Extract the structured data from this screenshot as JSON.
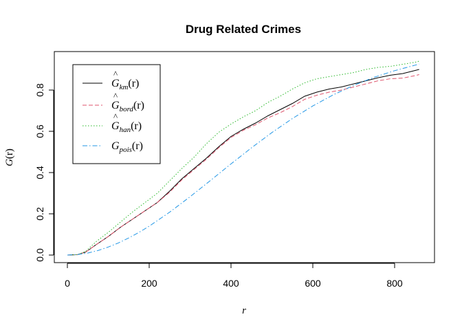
{
  "chart_data": {
    "type": "line",
    "title": "Drug Related Crimes",
    "xlabel": "r",
    "ylabel_base": "G",
    "ylabel_arg": "(r)",
    "xlim": [
      0,
      860
    ],
    "ylim": [
      0,
      0.93
    ],
    "x_ticks": [
      0,
      200,
      400,
      600,
      800
    ],
    "y_ticks": [
      0.0,
      0.2,
      0.4,
      0.6,
      0.8
    ],
    "x_tick_labels": [
      "0",
      "200",
      "400",
      "600",
      "800"
    ],
    "y_tick_labels": [
      "0.0",
      "0.2",
      "0.4",
      "0.6",
      "0.8"
    ],
    "legend_position": "top-left",
    "series": [
      {
        "base": "G",
        "hat": "^",
        "sub": "km",
        "arg": "(r)",
        "color": "#000000",
        "dash": "",
        "x": [
          0,
          25,
          45,
          70,
          100,
          130,
          160,
          190,
          220,
          250,
          280,
          310,
          340,
          370,
          400,
          430,
          460,
          490,
          520,
          550,
          580,
          610,
          640,
          670,
          700,
          730,
          760,
          790,
          820,
          850,
          860
        ],
        "y": [
          0,
          0.002,
          0.015,
          0.05,
          0.09,
          0.135,
          0.175,
          0.215,
          0.255,
          0.31,
          0.37,
          0.42,
          0.47,
          0.525,
          0.575,
          0.61,
          0.64,
          0.675,
          0.705,
          0.735,
          0.77,
          0.79,
          0.805,
          0.815,
          0.83,
          0.845,
          0.86,
          0.872,
          0.88,
          0.895,
          0.9
        ]
      },
      {
        "base": "G",
        "hat": "^",
        "sub": "bord",
        "arg": "(r)",
        "color": "#DF536B",
        "dash": "6,3",
        "x": [
          0,
          25,
          45,
          70,
          100,
          130,
          160,
          190,
          220,
          250,
          280,
          310,
          340,
          370,
          400,
          430,
          460,
          490,
          520,
          550,
          580,
          610,
          640,
          670,
          700,
          730,
          760,
          790,
          820,
          850,
          860
        ],
        "y": [
          0,
          0.002,
          0.015,
          0.05,
          0.09,
          0.135,
          0.175,
          0.215,
          0.255,
          0.305,
          0.365,
          0.415,
          0.465,
          0.52,
          0.57,
          0.605,
          0.632,
          0.665,
          0.69,
          0.72,
          0.755,
          0.775,
          0.79,
          0.8,
          0.815,
          0.83,
          0.845,
          0.855,
          0.858,
          0.87,
          0.875
        ]
      },
      {
        "base": "G",
        "hat": "^",
        "sub": "han",
        "arg": "(r)",
        "color": "#28B828",
        "dash": "1.5,2.5",
        "x": [
          0,
          25,
          45,
          70,
          100,
          130,
          160,
          190,
          220,
          250,
          280,
          310,
          340,
          370,
          400,
          430,
          460,
          490,
          520,
          550,
          580,
          610,
          640,
          670,
          700,
          730,
          760,
          790,
          820,
          850,
          860
        ],
        "y": [
          0,
          0.002,
          0.018,
          0.065,
          0.11,
          0.16,
          0.21,
          0.255,
          0.3,
          0.36,
          0.42,
          0.475,
          0.54,
          0.595,
          0.635,
          0.67,
          0.7,
          0.74,
          0.77,
          0.805,
          0.835,
          0.855,
          0.865,
          0.875,
          0.885,
          0.9,
          0.91,
          0.915,
          0.925,
          0.935,
          0.94
        ]
      },
      {
        "base": "G",
        "hat": "",
        "sub": "pois",
        "arg": "(r)",
        "color": "#2297E6",
        "dash": "7,3,1.5,3",
        "x": [
          0,
          25,
          50,
          75,
          100,
          125,
          150,
          175,
          200,
          250,
          300,
          350,
          400,
          450,
          500,
          550,
          600,
          650,
          700,
          750,
          800,
          860
        ],
        "y": [
          0,
          0.0025,
          0.01,
          0.022,
          0.039,
          0.059,
          0.083,
          0.11,
          0.14,
          0.208,
          0.283,
          0.362,
          0.442,
          0.52,
          0.594,
          0.662,
          0.723,
          0.777,
          0.823,
          0.862,
          0.894,
          0.926
        ]
      }
    ]
  }
}
